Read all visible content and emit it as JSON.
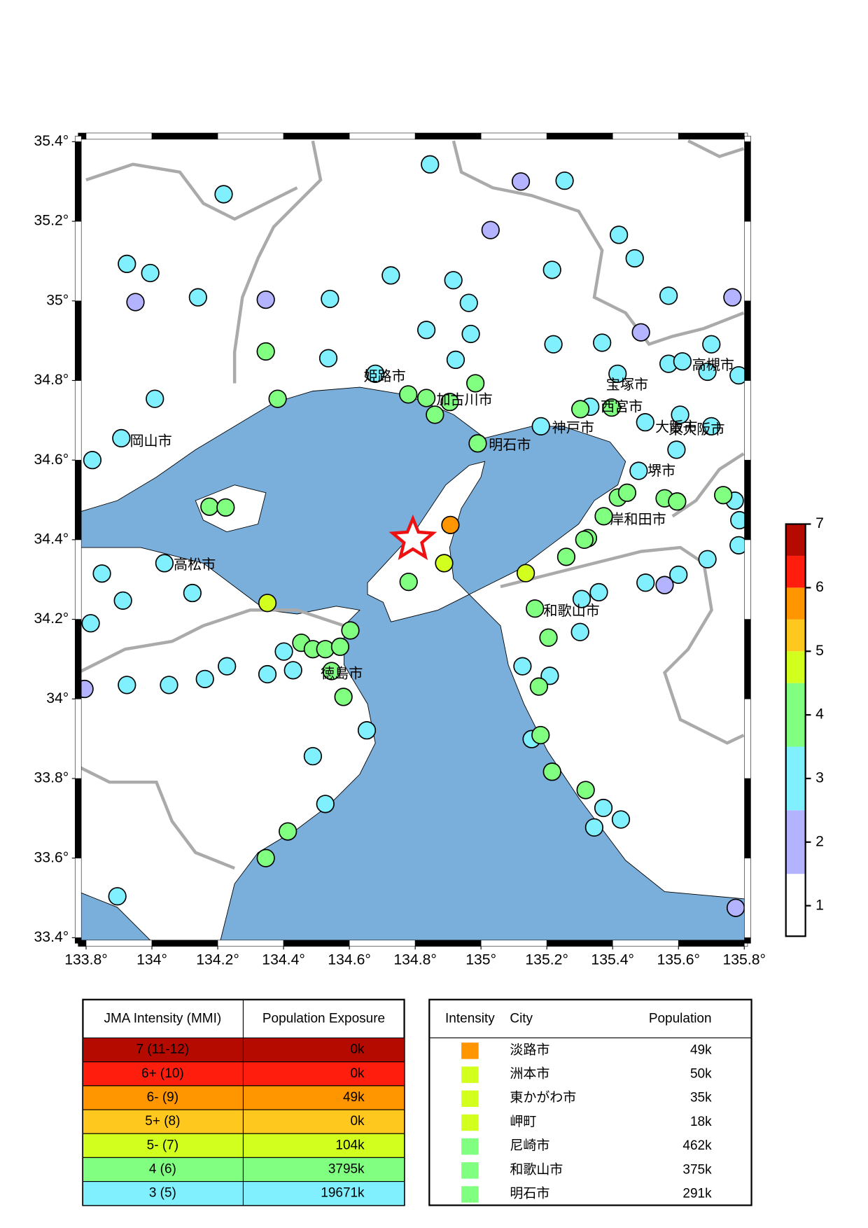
{
  "map": {
    "xlim": [
      133.776,
      135.81
    ],
    "ylim": [
      33.386,
      35.414
    ],
    "xticks": [
      {
        "value": 133.8,
        "label": "133.8°"
      },
      {
        "value": 134,
        "label": "134°"
      },
      {
        "value": 134.2,
        "label": "134.2°"
      },
      {
        "value": 134.4,
        "label": "134.4°"
      },
      {
        "value": 134.6,
        "label": "134.6°"
      },
      {
        "value": 134.8,
        "label": "134.8°"
      },
      {
        "value": 135,
        "label": "135°"
      },
      {
        "value": 135.2,
        "label": "135.2°"
      },
      {
        "value": 135.4,
        "label": "135.4°"
      },
      {
        "value": 135.6,
        "label": "135.6°"
      },
      {
        "value": 135.8,
        "label": "135.8°"
      }
    ],
    "yticks": [
      {
        "value": 33.4,
        "label": "33.4°"
      },
      {
        "value": 33.6,
        "label": "33.6°"
      },
      {
        "value": 33.8,
        "label": "33.8°"
      },
      {
        "value": 34,
        "label": "34°"
      },
      {
        "value": 34.2,
        "label": "34.2°"
      },
      {
        "value": 34.4,
        "label": "34.4°"
      },
      {
        "value": 34.6,
        "label": "34.6°"
      },
      {
        "value": 34.8,
        "label": "34.8°"
      },
      {
        "value": 35,
        "label": "35°"
      },
      {
        "value": 35.2,
        "label": "35.2°"
      },
      {
        "value": 35.4,
        "label": "35.4°"
      }
    ],
    "epicenter": {
      "lon": 134.793,
      "lat": 34.4,
      "color": "#ee1111"
    },
    "stations": {
      "lon": [
        134.845,
        135.254,
        134.218,
        133.995,
        133.924,
        134.14,
        134.541,
        134.726,
        134.916,
        134.963,
        134.834,
        134.969,
        135.216,
        135.467,
        135.419,
        135.57,
        135.22,
        135.368,
        134.536,
        134.679,
        134.923,
        134.009,
        133.907,
        133.819,
        134.038,
        133.848,
        133.912,
        134.123,
        135.182,
        135.332,
        135.415,
        135.479,
        135.499,
        135.57,
        135.612,
        135.7,
        135.688,
        135.605,
        135.594,
        135.7,
        135.783,
        135.688,
        135.6,
        135.5,
        135.358,
        135.306,
        135.301,
        135.209,
        135.126,
        135.154,
        135.372,
        135.344,
        135.425,
        134.653,
        134.351,
        134.429,
        134.228,
        134.161,
        134.052,
        133.924,
        133.814,
        134.489,
        134.527,
        133.895,
        135.783,
        135.785,
        135.771,
        134.401,
        135.121,
        135.029,
        134.346,
        133.95,
        135.764,
        135.486,
        133.795,
        135.558,
        135.774,
        134.346,
        134.382,
        134.779,
        134.834,
        134.86,
        134.905,
        134.983,
        134.99,
        135.302,
        135.397,
        135.373,
        135.325,
        135.416,
        135.444,
        135.259,
        135.314,
        135.558,
        135.596,
        135.736,
        134.175,
        134.224,
        134.78,
        134.603,
        134.454,
        134.489,
        134.527,
        134.572,
        134.546,
        134.582,
        135.164,
        135.205,
        135.176,
        135.181,
        135.318,
        135.216,
        134.346,
        134.413,
        134.888,
        135.136,
        134.351,
        134.907
      ],
      "lat": [
        35.343,
        35.302,
        35.268,
        35.07,
        35.093,
        35.009,
        35.005,
        35.064,
        35.052,
        34.995,
        34.927,
        34.917,
        35.078,
        35.107,
        35.166,
        35.013,
        34.891,
        34.895,
        34.856,
        34.817,
        34.852,
        34.754,
        34.655,
        34.6,
        34.341,
        34.315,
        34.247,
        34.266,
        34.685,
        34.734,
        34.817,
        34.573,
        34.695,
        34.842,
        34.848,
        34.891,
        34.822,
        34.714,
        34.626,
        34.685,
        34.813,
        34.351,
        34.312,
        34.292,
        34.268,
        34.251,
        34.168,
        34.058,
        34.082,
        33.899,
        33.726,
        33.677,
        33.697,
        33.921,
        34.062,
        34.072,
        34.082,
        34.05,
        34.035,
        34.035,
        34.19,
        33.856,
        33.736,
        33.504,
        34.386,
        34.449,
        34.498,
        34.119,
        35.3,
        35.178,
        35.003,
        34.997,
        35.009,
        34.921,
        34.025,
        34.286,
        33.475,
        34.873,
        34.754,
        34.765,
        34.756,
        34.714,
        34.746,
        34.793,
        34.642,
        34.728,
        34.732,
        34.459,
        34.404,
        34.506,
        34.518,
        34.357,
        34.4,
        34.504,
        34.496,
        34.512,
        34.483,
        34.481,
        34.294,
        34.172,
        34.141,
        34.125,
        34.125,
        34.131,
        34.07,
        34.005,
        34.227,
        34.154,
        34.031,
        33.909,
        33.771,
        33.817,
        33.6,
        33.667,
        34.341,
        34.316,
        34.241,
        34.437
      ],
      "intensity": [
        3,
        3,
        3,
        3,
        3,
        3,
        3,
        3,
        3,
        3,
        3,
        3,
        3,
        3,
        3,
        3,
        3,
        3,
        3,
        3,
        3,
        3,
        3,
        3,
        3,
        3,
        3,
        3,
        3,
        3,
        3,
        3,
        3,
        3,
        3,
        3,
        3,
        3,
        3,
        3,
        3,
        3,
        3,
        3,
        3,
        3,
        3,
        3,
        3,
        3,
        3,
        3,
        3,
        3,
        3,
        3,
        3,
        3,
        3,
        3,
        3,
        3,
        3,
        3,
        3,
        3,
        3,
        3,
        2,
        2,
        2,
        2,
        2,
        2,
        2,
        2,
        2,
        4,
        4,
        4,
        4,
        4,
        4,
        4,
        4,
        4,
        4,
        4,
        4,
        4,
        4,
        4,
        4,
        4,
        4,
        4,
        4,
        4,
        4,
        4,
        4,
        4,
        4,
        4,
        4,
        4,
        4,
        4,
        4,
        4,
        4,
        4,
        4,
        4,
        4.8,
        4.8,
        4.8,
        5.8
      ]
    },
    "cities": [
      "姫路市",
      "加古川市",
      "岡山市",
      "神戸市",
      "明石市",
      "高松市",
      "徳島市",
      "和歌山市",
      "岸和田市",
      "堺市",
      "宝塚市",
      "西宮市",
      "大阪市",
      "高槻市",
      "東大阪市"
    ]
  },
  "colorbar": {
    "bounds": [
      0.52,
      1.5,
      2.5,
      3.5,
      4.5,
      5,
      5.5,
      6,
      6.5,
      7
    ],
    "colors": [
      "#ffffff",
      "#b3b3ff",
      "#80f0ff",
      "#80ff80",
      "#d2ff1e",
      "#ffc81e",
      "#ff9600",
      "#ff1e0e",
      "#b40a00"
    ],
    "ticks": [
      1,
      2,
      3,
      4,
      5,
      6,
      7
    ]
  },
  "exposure_table": {
    "headers": [
      "JMA Intensity (MMI)",
      "Population Exposure"
    ],
    "rows": [
      [
        "7 (11-12)",
        "0k"
      ],
      [
        "6+ (10)",
        "0k"
      ],
      [
        "6- (9)",
        "49k"
      ],
      [
        "5+ (8)",
        "0k"
      ],
      [
        "5- (7)",
        "104k"
      ],
      [
        "4 (6)",
        "3795k"
      ],
      [
        "3 (5)",
        "19671k"
      ]
    ],
    "colors": [
      "#b40a00",
      "#ff1e0e",
      "#ff9600",
      "#ffc81e",
      "#d2ff1e",
      "#80ff80",
      "#80f0ff"
    ]
  },
  "city_table": {
    "headers": [
      "Intensity",
      "City",
      "Population"
    ],
    "rows": [
      [
        "淡路市",
        "49k"
      ],
      [
        "洲本市",
        "50k"
      ],
      [
        "東かがわ市",
        "35k"
      ],
      [
        "岬町",
        "18k"
      ],
      [
        "尼崎市",
        "462k"
      ],
      [
        "和歌山市",
        "375k"
      ],
      [
        "明石市",
        "291k"
      ]
    ],
    "colors": [
      "#ff9600",
      "#d2ff1e",
      "#d2ff1e",
      "#d2ff1e",
      "#80ff80",
      "#80ff80",
      "#80ff80"
    ]
  }
}
